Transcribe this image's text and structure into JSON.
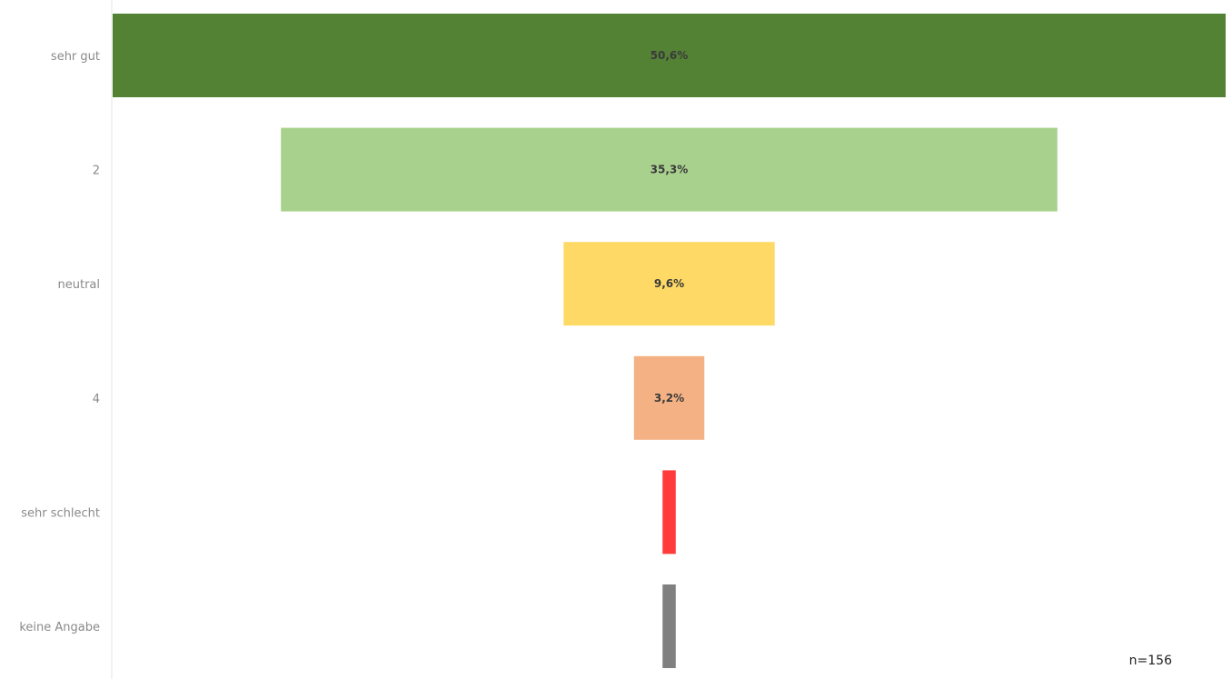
{
  "chart_data": {
    "type": "bar",
    "orientation": "horizontal",
    "style": "funnel-centered",
    "categories": [
      "sehr gut",
      "2",
      "neutral",
      "4",
      "sehr schlecht",
      "keine Angabe"
    ],
    "values": [
      50.6,
      35.3,
      9.6,
      3.2,
      0.6,
      0.6
    ],
    "value_labels": [
      "50,6%",
      "35,3%",
      "9,6%",
      "3,2%",
      "",
      ""
    ],
    "colors": [
      "#548235",
      "#a9d18e",
      "#ffd966",
      "#f4b183",
      "#ff3b3b",
      "#808080"
    ],
    "unit": "%",
    "grid": false,
    "legend": "none"
  },
  "footnote": "n=156"
}
